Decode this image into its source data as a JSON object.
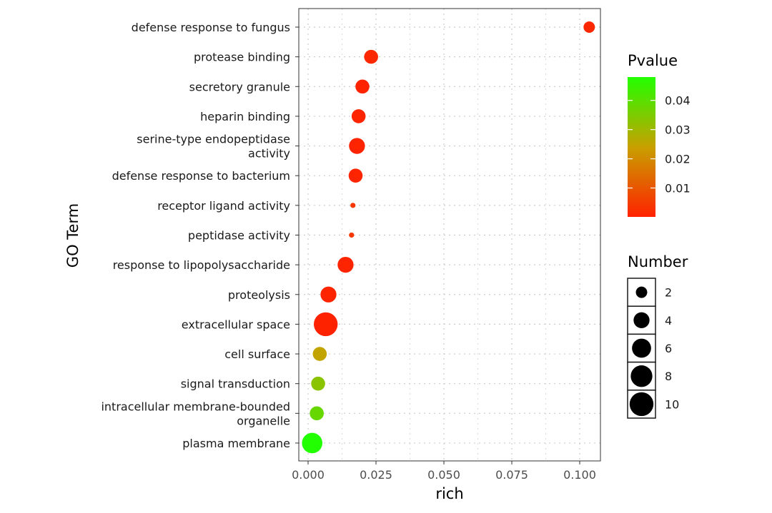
{
  "chart_data": {
    "type": "scatter",
    "xlabel": "rich",
    "ylabel": "GO Term",
    "xlim": [
      -0.004,
      0.107
    ],
    "x_ticks": [
      "0.000",
      "0.025",
      "0.050",
      "0.075",
      "0.100"
    ],
    "grid": true,
    "categories": [
      [
        "defense response to fungus"
      ],
      [
        "protease binding"
      ],
      [
        "secretory granule"
      ],
      [
        "heparin binding"
      ],
      [
        "serine-type endopeptidase",
        "activity"
      ],
      [
        "defense response to bacterium"
      ],
      [
        "receptor ligand activity"
      ],
      [
        "peptidase activity"
      ],
      [
        "response to lipopolysaccharide"
      ],
      [
        "proteolysis"
      ],
      [
        "extracellular space"
      ],
      [
        "cell surface"
      ],
      [
        "signal transduction"
      ],
      [
        "intracellular membrane-bounded",
        "organelle"
      ],
      [
        "plasma membrane"
      ]
    ],
    "points": [
      {
        "rich": 0.1035,
        "number": 2,
        "pvalue": 0.001
      },
      {
        "rich": 0.0232,
        "number": 3,
        "pvalue": 0.001
      },
      {
        "rich": 0.02,
        "number": 3,
        "pvalue": 0.0005
      },
      {
        "rich": 0.0186,
        "number": 3,
        "pvalue": 0.0005
      },
      {
        "rich": 0.018,
        "number": 4,
        "pvalue": 0.0005
      },
      {
        "rich": 0.0175,
        "number": 3,
        "pvalue": 0.0005
      },
      {
        "rich": 0.0165,
        "number": 1,
        "pvalue": 0.004
      },
      {
        "rich": 0.016,
        "number": 1,
        "pvalue": 0.004
      },
      {
        "rich": 0.0138,
        "number": 4,
        "pvalue": 0.0005
      },
      {
        "rich": 0.0075,
        "number": 4,
        "pvalue": 0.0005
      },
      {
        "rich": 0.0065,
        "number": 10,
        "pvalue": 0.0001
      },
      {
        "rich": 0.0043,
        "number": 3,
        "pvalue": 0.025
      },
      {
        "rich": 0.0037,
        "number": 3,
        "pvalue": 0.033
      },
      {
        "rich": 0.0032,
        "number": 3,
        "pvalue": 0.038
      },
      {
        "rich": 0.0015,
        "number": 7,
        "pvalue": 0.048
      }
    ],
    "color_legend": {
      "title": "Pvalue",
      "range": [
        0.0001,
        0.048
      ],
      "ticks": [
        0.01,
        0.02,
        0.03,
        0.04
      ],
      "tick_labels": [
        "0.01",
        "0.02",
        "0.03",
        "0.04"
      ],
      "low_color": "#ff2200",
      "mid_color": "#c8a000",
      "high_color": "#22ff00"
    },
    "size_legend": {
      "title": "Number",
      "values": [
        2,
        4,
        6,
        8,
        10
      ],
      "labels": [
        "2",
        "4",
        "6",
        "8",
        "10"
      ]
    }
  }
}
